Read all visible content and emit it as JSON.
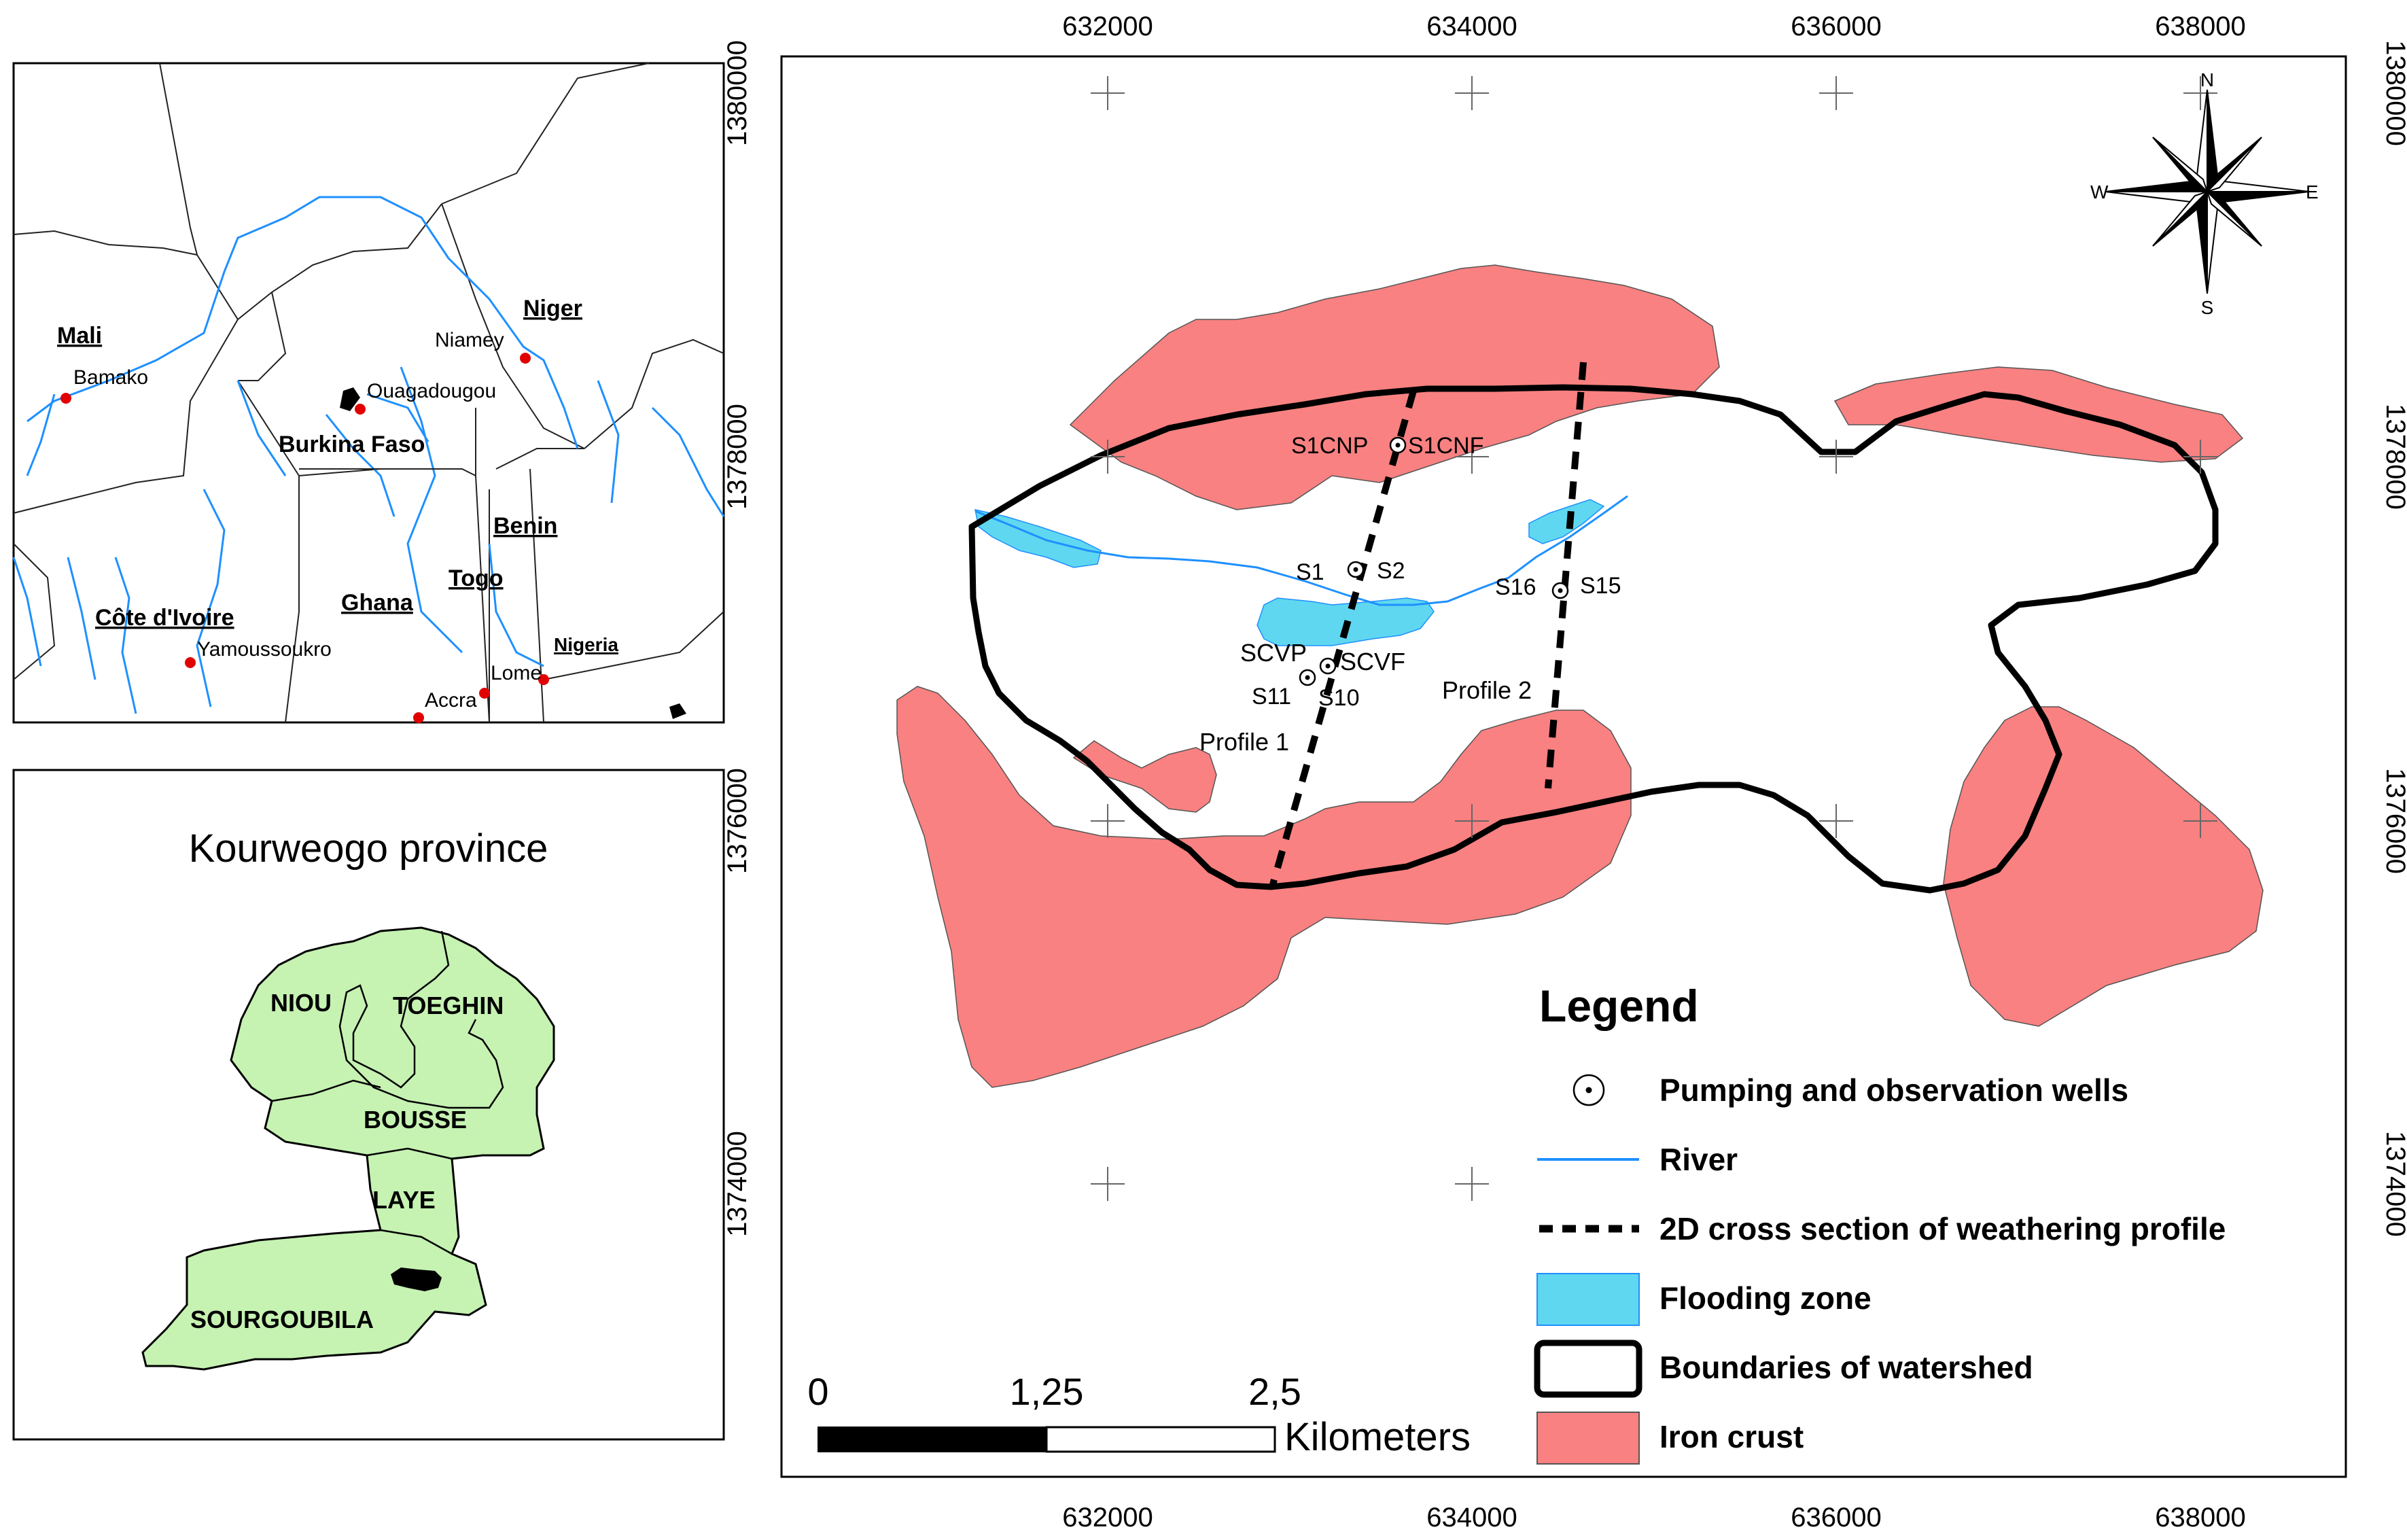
{
  "inset_region": {
    "countries": [
      {
        "name": "Mali"
      },
      {
        "name": "Niger"
      },
      {
        "name": "Burkina Faso"
      },
      {
        "name": "Benin"
      },
      {
        "name": "Togo"
      },
      {
        "name": "Ghana"
      },
      {
        "name": "Côte d'Ivoire"
      },
      {
        "name": "Nigeria"
      }
    ],
    "cities": [
      {
        "name": "Bamako"
      },
      {
        "name": "Niamey"
      },
      {
        "name": "Ouagadougou"
      },
      {
        "name": "Yamoussoukro"
      },
      {
        "name": "Lome"
      },
      {
        "name": "Accra"
      }
    ],
    "colors": {
      "river": "#1e90ff",
      "city": "#e00000"
    }
  },
  "inset_province": {
    "title": "Kourweogo province",
    "districts": [
      {
        "name": "NIOU"
      },
      {
        "name": "TOEGHIN"
      },
      {
        "name": "BOUSSE"
      },
      {
        "name": "LAYE"
      },
      {
        "name": "SOURGOUBILA"
      }
    ],
    "fill_color": "#c6f2b2"
  },
  "main_map": {
    "x_ticks": [
      "632000",
      "634000",
      "636000",
      "638000"
    ],
    "y_ticks": [
      "1380000",
      "1378000",
      "1376000",
      "1374000"
    ],
    "wells": [
      {
        "name": "S1CNP"
      },
      {
        "name": "S1CNF"
      },
      {
        "name": "S1"
      },
      {
        "name": "S2"
      },
      {
        "name": "S16"
      },
      {
        "name": "S15"
      },
      {
        "name": "SCVP"
      },
      {
        "name": "SCVF"
      },
      {
        "name": "S11"
      },
      {
        "name": "S10"
      }
    ],
    "profiles": [
      {
        "name": "Profile 1"
      },
      {
        "name": "Profile 2"
      }
    ],
    "north_arrow": {
      "n": "N",
      "s": "S",
      "e": "E",
      "w": "W"
    },
    "scale_bar": {
      "labels": [
        "0",
        "1,25",
        "2,5"
      ],
      "unit": "Kilometers"
    },
    "colors": {
      "iron_crust": "#f98181",
      "flooding_zone": "#5fd7f0",
      "river": "#1e90ff",
      "watershed": "#000000"
    }
  },
  "legend": {
    "title": "Legend",
    "items": [
      {
        "label": "Pumping and observation wells"
      },
      {
        "label": "River"
      },
      {
        "label": "2D cross section of weathering profile"
      },
      {
        "label": "Flooding zone"
      },
      {
        "label": "Boundaries of watershed"
      },
      {
        "label": "Iron crust"
      }
    ]
  }
}
